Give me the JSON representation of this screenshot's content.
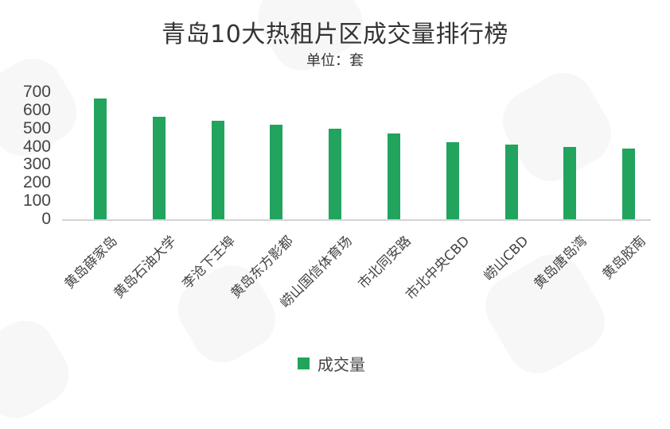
{
  "chart_data": {
    "type": "bar",
    "title": "青岛10大热租片区成交量排行榜",
    "subtitle": "单位：套",
    "xlabel": "",
    "ylabel": "",
    "ylim": [
      0,
      700
    ],
    "yticks": [
      700,
      600,
      500,
      400,
      300,
      200,
      100,
      0
    ],
    "grid": false,
    "legend_position": "bottom",
    "categories": [
      "黄岛薛家岛",
      "黄岛石油大学",
      "李沧下王埠",
      "黄岛东方影都",
      "崂山国信体育场",
      "市北同安路",
      "市北中央CBD",
      "崂山CBD",
      "黄岛唐岛湾",
      "黄岛胶南"
    ],
    "series": [
      {
        "name": "成交量",
        "color": "#22a35e",
        "values": [
          664,
          563,
          541,
          520,
          498,
          472,
          424,
          410,
          397,
          389
        ]
      }
    ]
  },
  "colors": {
    "bar": "#22a35e",
    "axis": "#d4d4d4",
    "text": "#333333"
  }
}
